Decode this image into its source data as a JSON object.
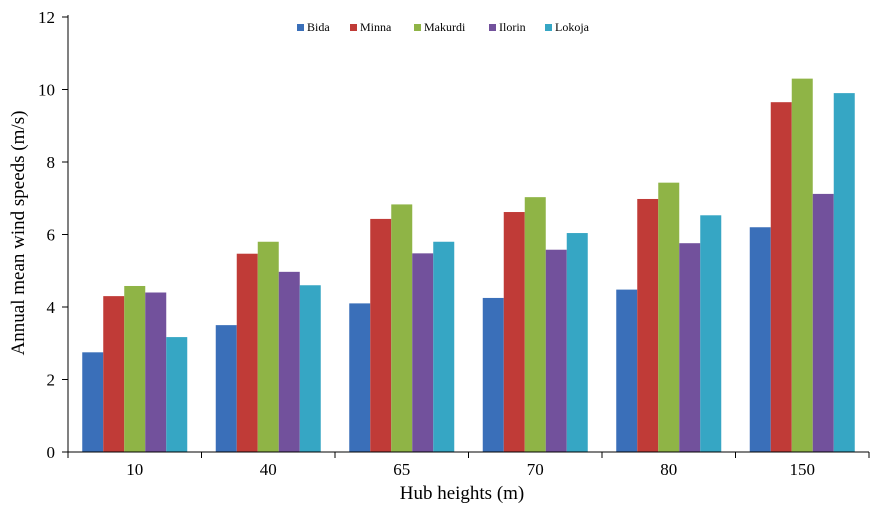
{
  "chart_data": {
    "type": "bar",
    "xlabel": "Hub heights (m)",
    "ylabel": "Annual mean wind speeds (m/s)",
    "categories": [
      "10",
      "40",
      "65",
      "70",
      "80",
      "150"
    ],
    "ylim": [
      0,
      12
    ],
    "yticks": [
      0,
      2,
      4,
      6,
      8,
      10,
      12
    ],
    "grid": false,
    "legend_position": "top-center",
    "series": [
      {
        "name": "Bida",
        "color": "#3a6fb9",
        "values": [
          2.75,
          3.5,
          4.1,
          4.25,
          4.48,
          6.2
        ]
      },
      {
        "name": "Minna",
        "color": "#c03b37",
        "values": [
          4.3,
          5.47,
          6.43,
          6.62,
          6.98,
          9.65
        ]
      },
      {
        "name": "Makurdi",
        "color": "#8fb446",
        "values": [
          4.58,
          5.8,
          6.83,
          7.03,
          7.43,
          10.3
        ]
      },
      {
        "name": "Ilorin",
        "color": "#72519c",
        "values": [
          4.4,
          4.97,
          5.48,
          5.58,
          5.76,
          7.12
        ]
      },
      {
        "name": "Lokoja",
        "color": "#36a6c4",
        "values": [
          3.17,
          4.6,
          5.8,
          6.04,
          6.53,
          9.9
        ]
      }
    ]
  }
}
